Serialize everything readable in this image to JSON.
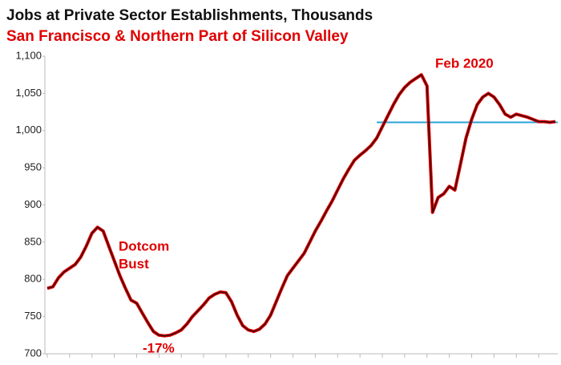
{
  "chart_data": {
    "type": "line",
    "title": "Jobs at Private Sector Establishments, Thousands",
    "subtitle": "San Francisco & Northern Part of Silicon Valley",
    "annotations": [
      "Feb 2020",
      "Dotcom",
      "Bust",
      "-17%"
    ],
    "categories": [
      null,
      null,
      null,
      null,
      null,
      null,
      null,
      null,
      null,
      null,
      null,
      null,
      null,
      null,
      null,
      null,
      null,
      null,
      null,
      null,
      null,
      null,
      null,
      null,
      null,
      null,
      null,
      null,
      null,
      null,
      null,
      null,
      null,
      null,
      null,
      null,
      null,
      null,
      null,
      null,
      null,
      null,
      null,
      null,
      null,
      null,
      null,
      null,
      null,
      null,
      null,
      null,
      null,
      null,
      null,
      null,
      null,
      null,
      null,
      null,
      null,
      null,
      null,
      null,
      null,
      null,
      null,
      null,
      null,
      null,
      null,
      null,
      null,
      null,
      null,
      null,
      null,
      null,
      null,
      null,
      null,
      null,
      null,
      null,
      null,
      null,
      null,
      null,
      null,
      null,
      null,
      null
    ],
    "series": [
      {
        "color": "#e00000",
        "values": [
          788,
          790,
          802,
          810,
          815,
          820,
          830,
          845,
          862,
          870,
          865,
          845,
          825,
          805,
          788,
          772,
          768,
          755,
          742,
          730,
          725,
          724,
          725,
          728,
          732,
          740,
          750,
          758,
          766,
          775,
          780,
          783,
          782,
          770,
          752,
          738,
          732,
          730,
          733,
          740,
          752,
          770,
          788,
          805,
          815,
          825,
          835,
          850,
          865,
          878,
          892,
          905,
          920,
          935,
          948,
          960,
          967,
          973,
          980,
          990,
          1005,
          1020,
          1035,
          1048,
          1058,
          1065,
          1070,
          1075,
          1060,
          890,
          910,
          915,
          925,
          920,
          955,
          990,
          1015,
          1035,
          1045,
          1050,
          1045,
          1035,
          1022,
          1018,
          1022,
          1020,
          1018,
          1015,
          1012,
          1012,
          1011,
          1012
        ]
      }
    ],
    "reference_line": {
      "value": 1011,
      "color": "#29a3d9"
    },
    "ylim": [
      700,
      1100
    ],
    "yticks": [
      700,
      750,
      800,
      850,
      900,
      950,
      {
        "value": 1000,
        "label": "1,000"
      },
      {
        "value": 1050,
        "label": "1,050"
      },
      {
        "value": 1100,
        "label": "1,100"
      }
    ],
    "grid": false
  }
}
